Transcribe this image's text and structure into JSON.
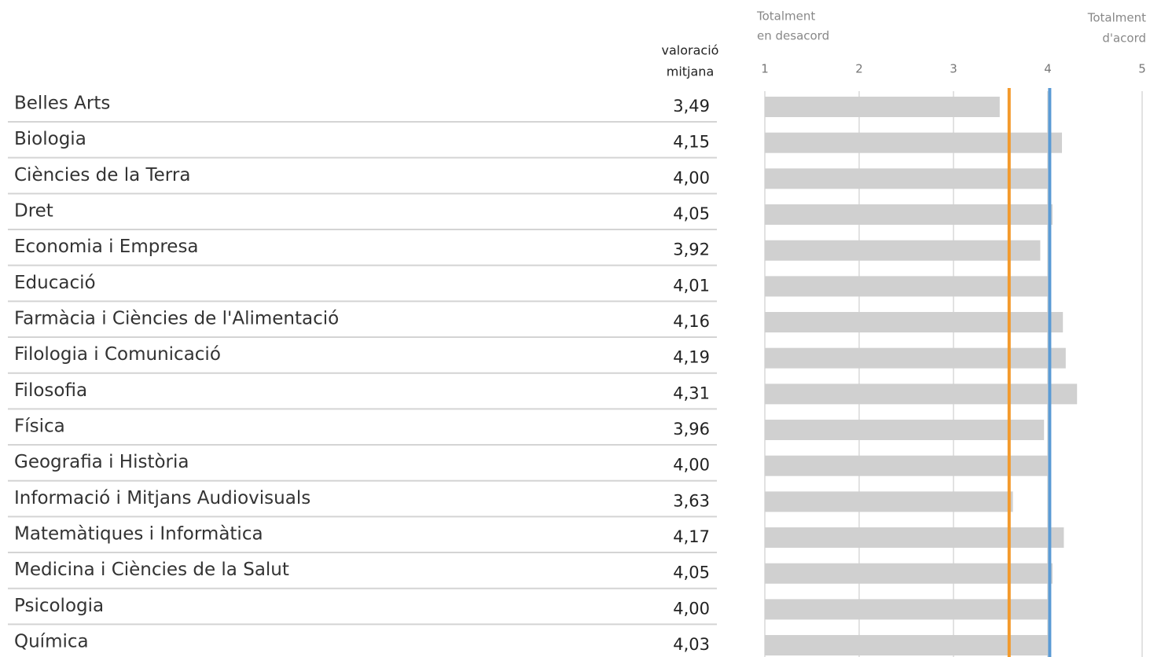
{
  "chart_data": {
    "type": "bar",
    "orientation": "horizontal",
    "value_header": [
      "valoració",
      "mitjana"
    ],
    "scale_left_label": [
      "Totalment",
      "en desacord"
    ],
    "scale_right_label": [
      "Totalment",
      "d'acord"
    ],
    "categories": [
      "Belles Arts",
      "Biologia",
      "Ciències de la Terra",
      "Dret",
      "Economia i Empresa",
      "Educació",
      "Farmàcia i Ciències de l'Alimentació",
      "Filologia i Comunicació",
      "Filosofia",
      "Física",
      "Geografia i Història",
      "Informació i Mitjans Audiovisuals",
      "Matemàtiques i Informàtica",
      "Medicina i Ciències de la Salut",
      "Psicologia",
      "Química"
    ],
    "values": [
      3.49,
      4.15,
      4.0,
      4.05,
      3.92,
      4.01,
      4.16,
      4.19,
      4.31,
      3.96,
      4.0,
      3.63,
      4.17,
      4.05,
      4.0,
      4.03
    ],
    "value_labels": [
      "3,49",
      "4,15",
      "4,00",
      "4,05",
      "3,92",
      "4,01",
      "4,16",
      "4,19",
      "4,31",
      "3,96",
      "4,00",
      "3,63",
      "4,17",
      "4,05",
      "4,00",
      "4,03"
    ],
    "color": "#d0d0d0",
    "xlim": [
      1,
      5
    ],
    "xticks": [
      1,
      2,
      3,
      4,
      5
    ],
    "grid": true,
    "reference_lines": [
      {
        "value": 3.59,
        "color": "#f39a2b"
      },
      {
        "value": 4.02,
        "color": "#5b9bd5"
      }
    ]
  }
}
